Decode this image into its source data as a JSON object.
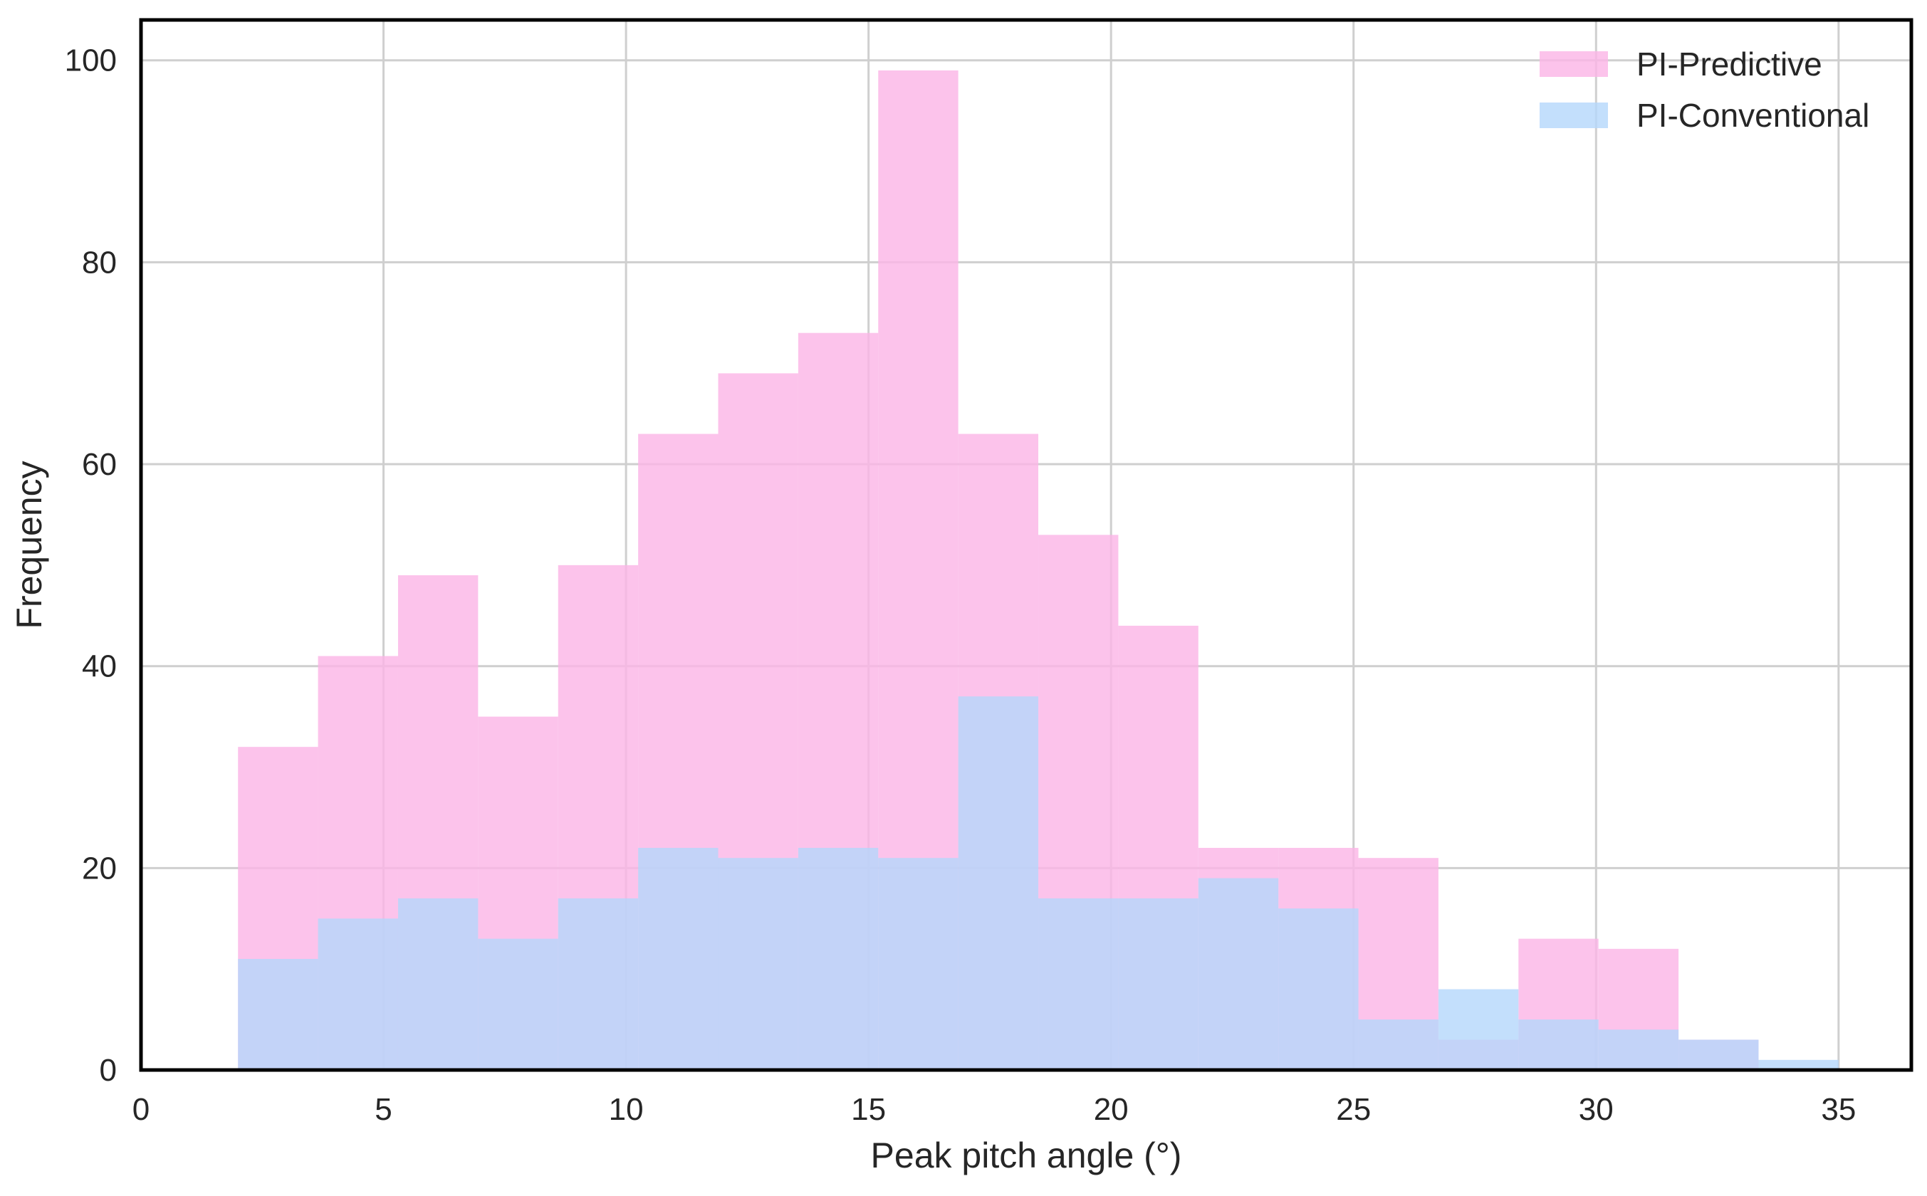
{
  "chart_data": {
    "type": "histogram",
    "xlabel": "Peak pitch angle (°)",
    "ylabel": "Frequency",
    "xlim": [
      0,
      36.5
    ],
    "ylim": [
      0,
      104
    ],
    "xticks": [
      0,
      5,
      10,
      15,
      20,
      25,
      30,
      35
    ],
    "yticks": [
      0,
      20,
      40,
      60,
      80,
      100
    ],
    "grid": true,
    "legend_position": "top-right",
    "series": [
      {
        "name": "PI-Predictive",
        "color": "#fbb4e6",
        "opacity": 0.8,
        "bins": [
          {
            "x0": 2.0,
            "x1": 3.65,
            "value": 32
          },
          {
            "x0": 3.65,
            "x1": 5.3,
            "value": 41
          },
          {
            "x0": 5.3,
            "x1": 6.95,
            "value": 49
          },
          {
            "x0": 6.95,
            "x1": 8.6,
            "value": 35
          },
          {
            "x0": 8.6,
            "x1": 10.25,
            "value": 50
          },
          {
            "x0": 10.25,
            "x1": 11.9,
            "value": 63
          },
          {
            "x0": 11.9,
            "x1": 13.55,
            "value": 69
          },
          {
            "x0": 13.55,
            "x1": 15.2,
            "value": 73
          },
          {
            "x0": 15.2,
            "x1": 16.85,
            "value": 99
          },
          {
            "x0": 16.85,
            "x1": 18.5,
            "value": 63
          },
          {
            "x0": 18.5,
            "x1": 20.15,
            "value": 53
          },
          {
            "x0": 20.15,
            "x1": 21.8,
            "value": 44
          },
          {
            "x0": 21.8,
            "x1": 23.45,
            "value": 22
          },
          {
            "x0": 23.45,
            "x1": 25.1,
            "value": 22
          },
          {
            "x0": 25.1,
            "x1": 26.75,
            "value": 21
          },
          {
            "x0": 26.75,
            "x1": 28.4,
            "value": 3
          },
          {
            "x0": 28.4,
            "x1": 30.05,
            "value": 13
          },
          {
            "x0": 30.05,
            "x1": 31.7,
            "value": 12
          },
          {
            "x0": 31.7,
            "x1": 33.35,
            "value": 3
          }
        ]
      },
      {
        "name": "PI-Conventional",
        "color": "#b4d7fb",
        "opacity": 0.8,
        "bins": [
          {
            "x0": 2.0,
            "x1": 3.65,
            "value": 11
          },
          {
            "x0": 3.65,
            "x1": 5.3,
            "value": 15
          },
          {
            "x0": 5.3,
            "x1": 6.95,
            "value": 17
          },
          {
            "x0": 6.95,
            "x1": 8.6,
            "value": 13
          },
          {
            "x0": 8.6,
            "x1": 10.25,
            "value": 17
          },
          {
            "x0": 10.25,
            "x1": 11.9,
            "value": 22
          },
          {
            "x0": 11.9,
            "x1": 13.55,
            "value": 21
          },
          {
            "x0": 13.55,
            "x1": 15.2,
            "value": 22
          },
          {
            "x0": 15.2,
            "x1": 16.85,
            "value": 21
          },
          {
            "x0": 16.85,
            "x1": 18.5,
            "value": 37
          },
          {
            "x0": 18.5,
            "x1": 20.15,
            "value": 17
          },
          {
            "x0": 20.15,
            "x1": 21.8,
            "value": 17
          },
          {
            "x0": 21.8,
            "x1": 23.45,
            "value": 19
          },
          {
            "x0": 23.45,
            "x1": 25.1,
            "value": 16
          },
          {
            "x0": 25.1,
            "x1": 26.75,
            "value": 5
          },
          {
            "x0": 26.75,
            "x1": 28.4,
            "value": 8
          },
          {
            "x0": 28.4,
            "x1": 30.05,
            "value": 5
          },
          {
            "x0": 30.05,
            "x1": 31.7,
            "value": 4
          },
          {
            "x0": 31.7,
            "x1": 33.35,
            "value": 3
          },
          {
            "x0": 33.35,
            "x1": 35.0,
            "value": 1
          }
        ]
      }
    ]
  }
}
